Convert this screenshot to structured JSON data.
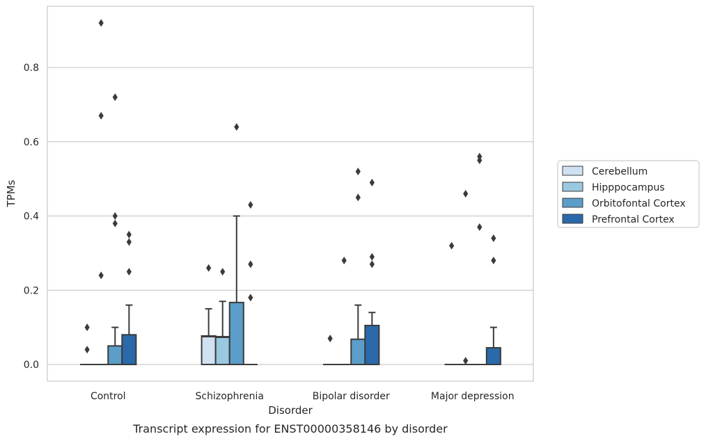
{
  "chart_data": {
    "type": "box",
    "caption": "Transcript expression for ENST00000358146 by disorder",
    "xlabel": "Disorder",
    "ylabel": "TPMs",
    "ylim": [
      -0.045,
      0.965
    ],
    "yticks": [
      "0.0",
      "0.2",
      "0.4",
      "0.6",
      "0.8"
    ],
    "grid": "horizontal",
    "legend_position": "right",
    "categories": [
      "Control",
      "Schizophrenia",
      "Bipolar disorder",
      "Major depression"
    ],
    "series": [
      {
        "name": "Cerebellum",
        "color": "#d0e1f2",
        "boxes": [
          {
            "q1": 0,
            "median": 0,
            "q3": 0,
            "whisker_high": 0,
            "outliers": [
              0.1,
              0.04
            ]
          },
          {
            "q1": 0,
            "median": 0.075,
            "q3": 0.077,
            "whisker_high": 0.15,
            "outliers": [
              0.26
            ]
          },
          {
            "q1": 0,
            "median": 0,
            "q3": 0,
            "whisker_high": 0,
            "outliers": [
              0.07
            ]
          },
          {
            "q1": 0,
            "median": 0,
            "q3": 0,
            "whisker_high": 0,
            "outliers": [
              0.32
            ]
          }
        ]
      },
      {
        "name": "Hipppocampus",
        "color": "#9ac8e0",
        "boxes": [
          {
            "q1": 0,
            "median": 0,
            "q3": 0,
            "whisker_high": 0,
            "outliers": [
              0.92,
              0.67,
              0.24
            ]
          },
          {
            "q1": 0,
            "median": 0.073,
            "q3": 0.075,
            "whisker_high": 0.17,
            "outliers": [
              0.25
            ]
          },
          {
            "q1": 0,
            "median": 0,
            "q3": 0,
            "whisker_high": 0,
            "outliers": [
              0.28
            ]
          },
          {
            "q1": 0,
            "median": 0,
            "q3": 0,
            "whisker_high": 0,
            "outliers": [
              0.46,
              0.01
            ]
          }
        ]
      },
      {
        "name": "Orbitofontal Cortex",
        "color": "#5a9ec9",
        "boxes": [
          {
            "q1": 0,
            "median": 0,
            "q3": 0.05,
            "whisker_high": 0.1,
            "outliers": [
              0.72,
              0.4,
              0.38
            ]
          },
          {
            "q1": 0,
            "median": 0,
            "q3": 0.167,
            "whisker_high": 0.4,
            "outliers": [
              0.64
            ]
          },
          {
            "q1": 0,
            "median": 0,
            "q3": 0.068,
            "whisker_high": 0.16,
            "outliers": [
              0.52,
              0.45
            ]
          },
          {
            "q1": 0,
            "median": 0,
            "q3": 0,
            "whisker_high": 0,
            "outliers": [
              0.56,
              0.55,
              0.37
            ]
          }
        ]
      },
      {
        "name": "Prefrontal Cortex",
        "color": "#2a6aaa",
        "boxes": [
          {
            "q1": 0,
            "median": 0,
            "q3": 0.08,
            "whisker_high": 0.16,
            "outliers": [
              0.35,
              0.33,
              0.25
            ]
          },
          {
            "q1": 0,
            "median": 0,
            "q3": 0,
            "whisker_high": 0,
            "outliers": [
              0.43,
              0.27,
              0.18
            ]
          },
          {
            "q1": 0,
            "median": 0,
            "q3": 0.105,
            "whisker_high": 0.14,
            "outliers": [
              0.49,
              0.29,
              0.27
            ]
          },
          {
            "q1": 0,
            "median": 0,
            "q3": 0.045,
            "whisker_high": 0.1,
            "outliers": [
              0.34,
              0.28
            ]
          }
        ]
      }
    ]
  }
}
